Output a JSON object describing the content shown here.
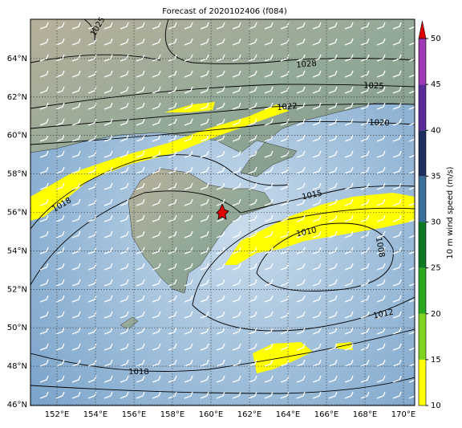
{
  "title": "Forecast of 2020102406 (f084)",
  "map": {
    "lon_ticks": [
      {
        "value": 152,
        "label": "152°E"
      },
      {
        "value": 154,
        "label": "154°E"
      },
      {
        "value": 156,
        "label": "156°E"
      },
      {
        "value": 158,
        "label": "158°E"
      },
      {
        "value": 160,
        "label": "160°E"
      },
      {
        "value": 162,
        "label": "162°E"
      },
      {
        "value": 164,
        "label": "164°E"
      },
      {
        "value": 166,
        "label": "166°E"
      },
      {
        "value": 168,
        "label": "168°E"
      },
      {
        "value": 170,
        "label": "170°E"
      }
    ],
    "lat_ticks": [
      {
        "value": 46,
        "label": "46°N"
      },
      {
        "value": 48,
        "label": "48°N"
      },
      {
        "value": 50,
        "label": "50°N"
      },
      {
        "value": 52,
        "label": "52°N"
      },
      {
        "value": 54,
        "label": "54°N"
      },
      {
        "value": 56,
        "label": "56°N"
      },
      {
        "value": 58,
        "label": "58°N"
      },
      {
        "value": 60,
        "label": "60°N"
      },
      {
        "value": 62,
        "label": "62°N"
      },
      {
        "value": 64,
        "label": "64°N"
      }
    ],
    "contour_labels": [
      1025,
      1028,
      1025,
      1022,
      1020,
      1018,
      1015,
      1010,
      1008,
      1012,
      1018
    ]
  },
  "colorbar": {
    "label": "10 m wind speed (m/s)",
    "ticks": [
      10,
      15,
      20,
      25,
      30,
      35,
      40,
      45,
      50
    ],
    "colors": [
      "#ffff00",
      "#7fd21e",
      "#2aa81e",
      "#0d7a23",
      "#3a6f9a",
      "#1e2f5e",
      "#5a2a9a",
      "#a03ab4"
    ],
    "extend_color": "#e00000"
  }
}
